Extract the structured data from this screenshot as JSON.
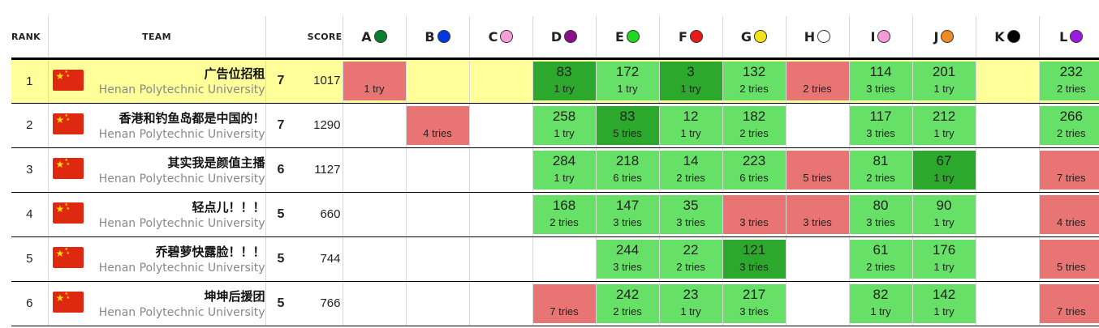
{
  "headers": {
    "rank": "RANK",
    "team": "TEAM",
    "score": "SCORE"
  },
  "problems": [
    {
      "label": "A",
      "color": "#0a7f2e"
    },
    {
      "label": "B",
      "color": "#0038e0"
    },
    {
      "label": "C",
      "color": "#f6a0d8"
    },
    {
      "label": "D",
      "color": "#8a0f8a"
    },
    {
      "label": "E",
      "color": "#22d722"
    },
    {
      "label": "F",
      "color": "#e81a1a"
    },
    {
      "label": "G",
      "color": "#f5e31a"
    },
    {
      "label": "H",
      "color": "#ffffff"
    },
    {
      "label": "I",
      "color": "#f59ad8"
    },
    {
      "label": "J",
      "color": "#f08a24"
    },
    {
      "label": "K",
      "color": "#000000"
    },
    {
      "label": "L",
      "color": "#9a1ae0"
    }
  ],
  "status_colors": {
    "solved": "#66e066",
    "first_solve": "#2ca82c",
    "failed": "#e87474",
    "highlight_row": "#ffff99"
  },
  "rows": [
    {
      "rank": "1",
      "name": "广告位招租",
      "affiliation": "Henan Polytechnic University",
      "solved": "7",
      "penalty": "1017",
      "highlight": true,
      "cells": [
        {
          "s": "fail",
          "time": "",
          "tries": "1 try"
        },
        {
          "s": "none",
          "time": "",
          "tries": ""
        },
        {
          "s": "none",
          "time": "",
          "tries": ""
        },
        {
          "s": "first",
          "time": "83",
          "tries": "1 try"
        },
        {
          "s": "solved",
          "time": "172",
          "tries": "1 try"
        },
        {
          "s": "first",
          "time": "3",
          "tries": "1 try"
        },
        {
          "s": "solved",
          "time": "132",
          "tries": "2 tries"
        },
        {
          "s": "fail",
          "time": "",
          "tries": "2 tries"
        },
        {
          "s": "solved",
          "time": "114",
          "tries": "3 tries"
        },
        {
          "s": "solved",
          "time": "201",
          "tries": "1 try"
        },
        {
          "s": "none",
          "time": "",
          "tries": ""
        },
        {
          "s": "solved",
          "time": "232",
          "tries": "2 tries"
        }
      ]
    },
    {
      "rank": "2",
      "name": "香港和钓鱼岛都是中国的！",
      "affiliation": "Henan Polytechnic University",
      "solved": "7",
      "penalty": "1290",
      "highlight": false,
      "cells": [
        {
          "s": "none",
          "time": "",
          "tries": ""
        },
        {
          "s": "fail",
          "time": "",
          "tries": "4 tries"
        },
        {
          "s": "none",
          "time": "",
          "tries": ""
        },
        {
          "s": "solved",
          "time": "258",
          "tries": "1 try"
        },
        {
          "s": "first",
          "time": "83",
          "tries": "5 tries"
        },
        {
          "s": "solved",
          "time": "12",
          "tries": "1 try"
        },
        {
          "s": "solved",
          "time": "182",
          "tries": "2 tries"
        },
        {
          "s": "none",
          "time": "",
          "tries": ""
        },
        {
          "s": "solved",
          "time": "117",
          "tries": "3 tries"
        },
        {
          "s": "solved",
          "time": "212",
          "tries": "1 try"
        },
        {
          "s": "none",
          "time": "",
          "tries": ""
        },
        {
          "s": "solved",
          "time": "266",
          "tries": "2 tries"
        }
      ]
    },
    {
      "rank": "3",
      "name": "其实我是颜值主播",
      "affiliation": "Henan Polytechnic University",
      "solved": "6",
      "penalty": "1127",
      "highlight": false,
      "cells": [
        {
          "s": "none",
          "time": "",
          "tries": ""
        },
        {
          "s": "none",
          "time": "",
          "tries": ""
        },
        {
          "s": "none",
          "time": "",
          "tries": ""
        },
        {
          "s": "solved",
          "time": "284",
          "tries": "1 try"
        },
        {
          "s": "solved",
          "time": "218",
          "tries": "6 tries"
        },
        {
          "s": "solved",
          "time": "14",
          "tries": "2 tries"
        },
        {
          "s": "solved",
          "time": "223",
          "tries": "6 tries"
        },
        {
          "s": "fail",
          "time": "",
          "tries": "5 tries"
        },
        {
          "s": "solved",
          "time": "81",
          "tries": "2 tries"
        },
        {
          "s": "first",
          "time": "67",
          "tries": "1 try"
        },
        {
          "s": "none",
          "time": "",
          "tries": ""
        },
        {
          "s": "fail",
          "time": "",
          "tries": "7 tries"
        }
      ]
    },
    {
      "rank": "4",
      "name": "轻点儿！！！",
      "affiliation": "Henan Polytechnic University",
      "solved": "5",
      "penalty": "660",
      "highlight": false,
      "cells": [
        {
          "s": "none",
          "time": "",
          "tries": ""
        },
        {
          "s": "none",
          "time": "",
          "tries": ""
        },
        {
          "s": "none",
          "time": "",
          "tries": ""
        },
        {
          "s": "solved",
          "time": "168",
          "tries": "2 tries"
        },
        {
          "s": "solved",
          "time": "147",
          "tries": "3 tries"
        },
        {
          "s": "solved",
          "time": "35",
          "tries": "3 tries"
        },
        {
          "s": "fail",
          "time": "",
          "tries": "3 tries"
        },
        {
          "s": "fail",
          "time": "",
          "tries": "3 tries"
        },
        {
          "s": "solved",
          "time": "80",
          "tries": "3 tries"
        },
        {
          "s": "solved",
          "time": "90",
          "tries": "1 try"
        },
        {
          "s": "none",
          "time": "",
          "tries": ""
        },
        {
          "s": "fail",
          "time": "",
          "tries": "4 tries"
        }
      ]
    },
    {
      "rank": "5",
      "name": "乔碧萝快露脸！！！",
      "affiliation": "Henan Polytechnic University",
      "solved": "5",
      "penalty": "744",
      "highlight": false,
      "cells": [
        {
          "s": "none",
          "time": "",
          "tries": ""
        },
        {
          "s": "none",
          "time": "",
          "tries": ""
        },
        {
          "s": "none",
          "time": "",
          "tries": ""
        },
        {
          "s": "none",
          "time": "",
          "tries": ""
        },
        {
          "s": "solved",
          "time": "244",
          "tries": "3 tries"
        },
        {
          "s": "solved",
          "time": "22",
          "tries": "2 tries"
        },
        {
          "s": "first",
          "time": "121",
          "tries": "3 tries"
        },
        {
          "s": "none",
          "time": "",
          "tries": ""
        },
        {
          "s": "solved",
          "time": "61",
          "tries": "2 tries"
        },
        {
          "s": "solved",
          "time": "176",
          "tries": "1 try"
        },
        {
          "s": "none",
          "time": "",
          "tries": ""
        },
        {
          "s": "fail",
          "time": "",
          "tries": "5 tries"
        }
      ]
    },
    {
      "rank": "6",
      "name": "坤坤后援团",
      "affiliation": "Henan Polytechnic University",
      "solved": "5",
      "penalty": "766",
      "highlight": false,
      "cells": [
        {
          "s": "none",
          "time": "",
          "tries": ""
        },
        {
          "s": "none",
          "time": "",
          "tries": ""
        },
        {
          "s": "none",
          "time": "",
          "tries": ""
        },
        {
          "s": "fail",
          "time": "",
          "tries": "7 tries"
        },
        {
          "s": "solved",
          "time": "242",
          "tries": "2 tries"
        },
        {
          "s": "solved",
          "time": "23",
          "tries": "1 try"
        },
        {
          "s": "solved",
          "time": "217",
          "tries": "3 tries"
        },
        {
          "s": "none",
          "time": "",
          "tries": ""
        },
        {
          "s": "solved",
          "time": "82",
          "tries": "1 try"
        },
        {
          "s": "solved",
          "time": "142",
          "tries": "1 try"
        },
        {
          "s": "none",
          "time": "",
          "tries": ""
        },
        {
          "s": "fail",
          "time": "",
          "tries": "7 tries"
        }
      ]
    }
  ]
}
